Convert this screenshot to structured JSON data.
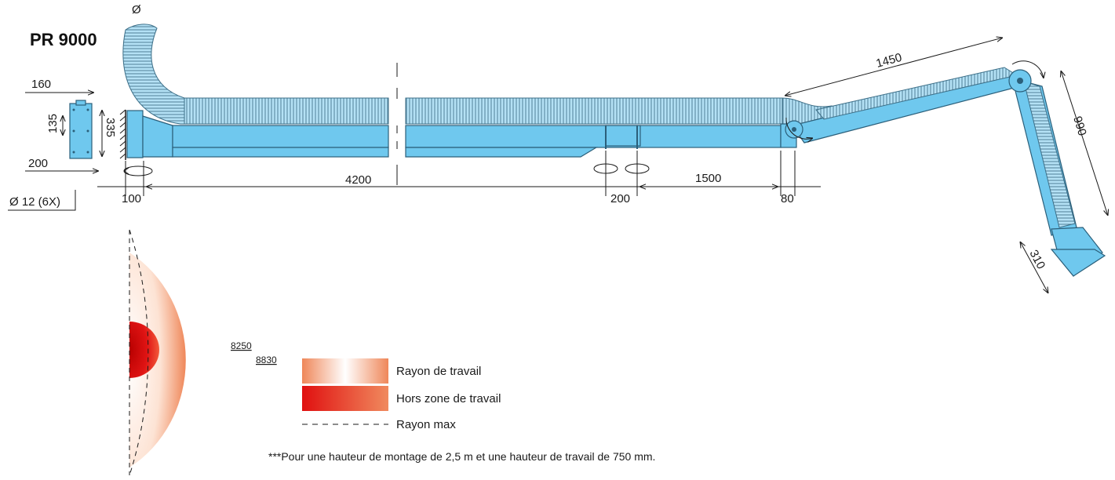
{
  "model": "PR 9000",
  "diameter_symbol": "Ø",
  "mount_bolt": "Ø 12 (6X)",
  "dims": {
    "bracket_width": "160",
    "bracket_height_inner": "135",
    "bracket_height_outer": "335",
    "bracket_base": "200",
    "offset_wall": "100",
    "boom_length": "4200",
    "joint_gap": "200",
    "second_segment": "1500",
    "end_gap": "80",
    "arm_upper": "1450",
    "arm_lower": "990",
    "hood": "310"
  },
  "radius": {
    "working": "8250",
    "max": "8830"
  },
  "legend": [
    {
      "label": "Rayon de travail",
      "kind": "working-zone"
    },
    {
      "label": "Hors zone de travail",
      "kind": "dead-zone"
    },
    {
      "label": "Rayon max",
      "kind": "max-radius"
    }
  ],
  "footnote": "***Pour une hauteur de montage de 2,5 m et une hauteur de travail de 750 mm.",
  "colors": {
    "arm_blue": "#6fc8ee",
    "zone_orange": "#ee8a5c",
    "zone_red": "#e01818"
  }
}
